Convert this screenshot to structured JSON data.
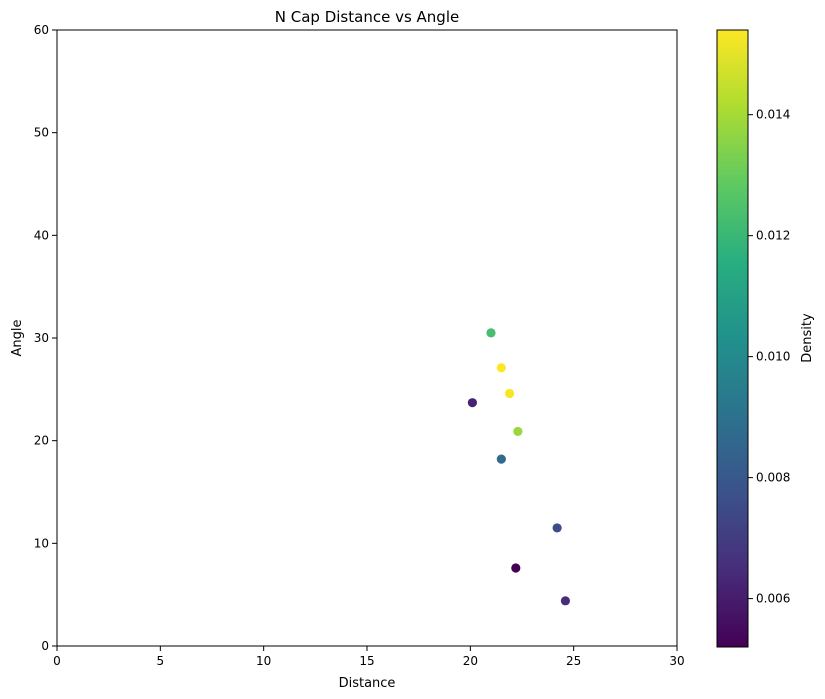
{
  "chart_data": {
    "type": "scatter",
    "title": "N Cap Distance vs Angle",
    "xlabel": "Distance",
    "ylabel": "Angle",
    "xlim": [
      0,
      30
    ],
    "ylim": [
      0,
      60
    ],
    "xticks": [
      0,
      5,
      10,
      15,
      20,
      25,
      30
    ],
    "yticks": [
      0,
      10,
      20,
      30,
      40,
      50,
      60
    ],
    "grid": false,
    "colormap": "viridis",
    "colorbar": {
      "label": "Density",
      "range": [
        0.0052,
        0.0154
      ],
      "ticks": [
        0.006,
        0.008,
        0.01,
        0.012,
        0.014
      ],
      "tick_labels": [
        "0.006",
        "0.008",
        "0.010",
        "0.012",
        "0.014"
      ]
    },
    "points": [
      {
        "x": 21.0,
        "y": 30.5,
        "density": 0.0123
      },
      {
        "x": 21.5,
        "y": 27.1,
        "density": 0.0154
      },
      {
        "x": 21.9,
        "y": 24.6,
        "density": 0.0153
      },
      {
        "x": 20.1,
        "y": 23.7,
        "density": 0.0062
      },
      {
        "x": 22.3,
        "y": 20.9,
        "density": 0.0138
      },
      {
        "x": 21.5,
        "y": 18.2,
        "density": 0.0087
      },
      {
        "x": 24.2,
        "y": 11.5,
        "density": 0.0075
      },
      {
        "x": 22.2,
        "y": 7.6,
        "density": 0.0052
      },
      {
        "x": 24.6,
        "y": 4.4,
        "density": 0.0065
      }
    ]
  }
}
